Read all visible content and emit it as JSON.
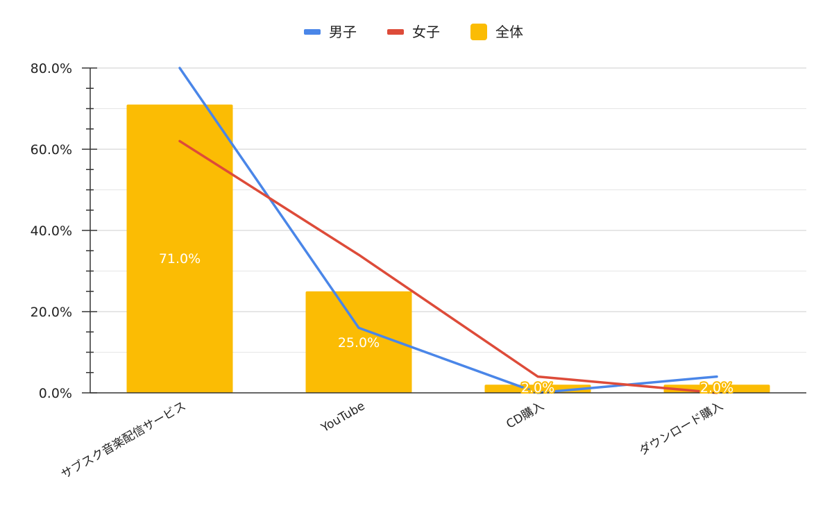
{
  "chart_data": {
    "type": "bar",
    "categories": [
      "サブスク音楽配信サービス",
      "YouTube",
      "CD購入",
      "ダウンロード購入"
    ],
    "series": [
      {
        "name": "全体",
        "type": "bar",
        "values": [
          71.0,
          25.0,
          2.0,
          2.0
        ],
        "color": "#FBBC04"
      },
      {
        "name": "男子",
        "type": "line",
        "values": [
          80.0,
          16.0,
          0.0,
          4.0
        ],
        "color": "#4A86E8"
      },
      {
        "name": "女子",
        "type": "line",
        "values": [
          62.0,
          34.0,
          4.0,
          0.0
        ],
        "color": "#DD4B39"
      }
    ],
    "data_labels": [
      "71.0%",
      "25.0%",
      "2.0%",
      "2.0%"
    ],
    "ylim": [
      0,
      80
    ],
    "yticks": [
      "0.0%",
      "20.0%",
      "40.0%",
      "60.0%",
      "80.0%"
    ],
    "legend": {
      "position": "top",
      "items": [
        "男子",
        "女子",
        "全体"
      ]
    },
    "grid": true
  }
}
